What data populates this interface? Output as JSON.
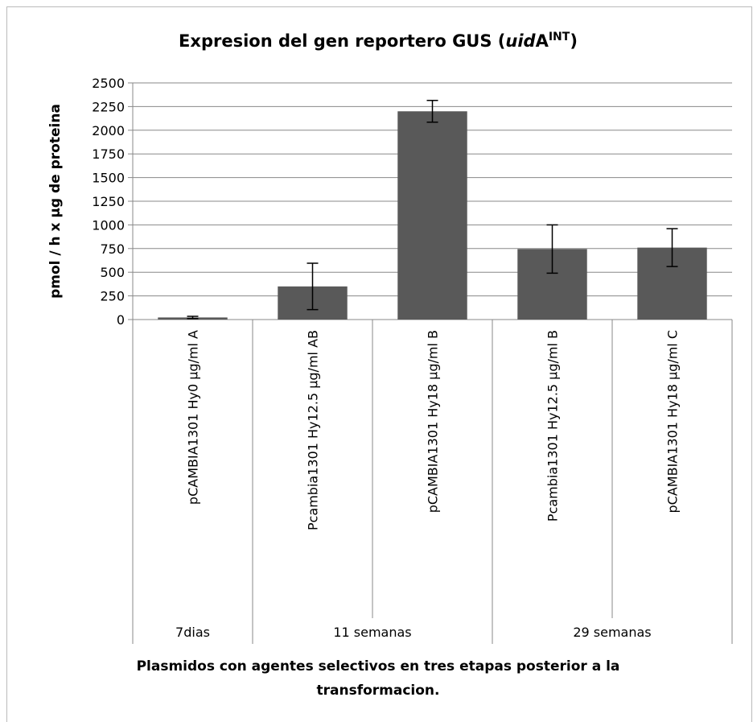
{
  "chart_data": {
    "type": "bar",
    "title_parts": [
      "Expresion del gen reportero GUS (",
      "uid",
      "A",
      "INT",
      ")"
    ],
    "ylabel": "pmol / h x µg de proteina",
    "xlabel": "Plasmidos con agentes selectivos en tres etapas posterior a la transformacion.",
    "categories": [
      "pCAMBIA1301 Hy0 µg/ml A",
      "Pcambia1301 Hy12.5 µg/ml AB",
      "pCAMBIA1301 Hy18 µg/ml B",
      "Pcambia1301 Hy12.5 µg/ml B",
      "pCAMBIA1301 Hy18 µg/ml C"
    ],
    "groups": [
      {
        "label": "7dias",
        "span": 1
      },
      {
        "label": "11 semanas",
        "span": 2
      },
      {
        "label": "29 semanas",
        "span": 2
      }
    ],
    "values": [
      22,
      350,
      2200,
      745,
      760
    ],
    "errors": [
      12,
      245,
      115,
      255,
      200
    ],
    "color": "#595959",
    "ylim": [
      0,
      2500
    ],
    "yticks": [
      0,
      250,
      500,
      750,
      1000,
      1250,
      1500,
      1750,
      2000,
      2250,
      2500
    ],
    "grid": true
  }
}
